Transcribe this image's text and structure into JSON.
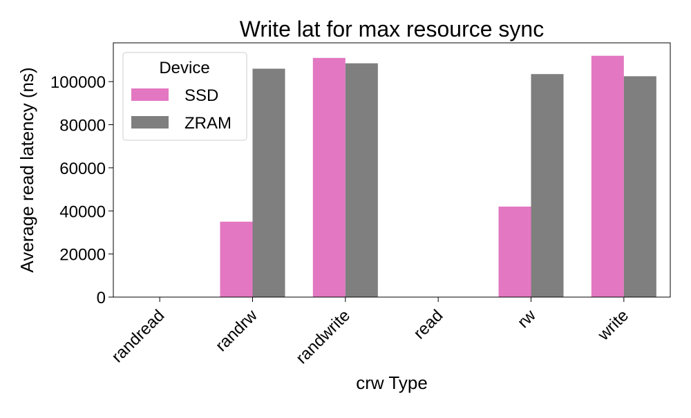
{
  "chart_data": {
    "type": "bar",
    "title": "Write lat for max resource sync",
    "xlabel": "crw Type",
    "ylabel": "Average read latency (ns)",
    "categories": [
      "randread",
      "randrw",
      "randwrite",
      "read",
      "rw",
      "write"
    ],
    "series": [
      {
        "name": "SSD",
        "color": "#e377c2",
        "values": [
          0,
          35000,
          111000,
          0,
          42000,
          112000
        ]
      },
      {
        "name": "ZRAM",
        "color": "#7f7f7f",
        "values": [
          0,
          106000,
          108500,
          0,
          103500,
          102500
        ]
      }
    ],
    "ylim": [
      0,
      118000
    ],
    "yticks": [
      0,
      20000,
      40000,
      60000,
      80000,
      100000
    ],
    "ytick_labels": [
      "0",
      "20000",
      "40000",
      "60000",
      "80000",
      "100000"
    ],
    "legend": {
      "title": "Device",
      "placement": "top-left"
    },
    "grid": false
  }
}
